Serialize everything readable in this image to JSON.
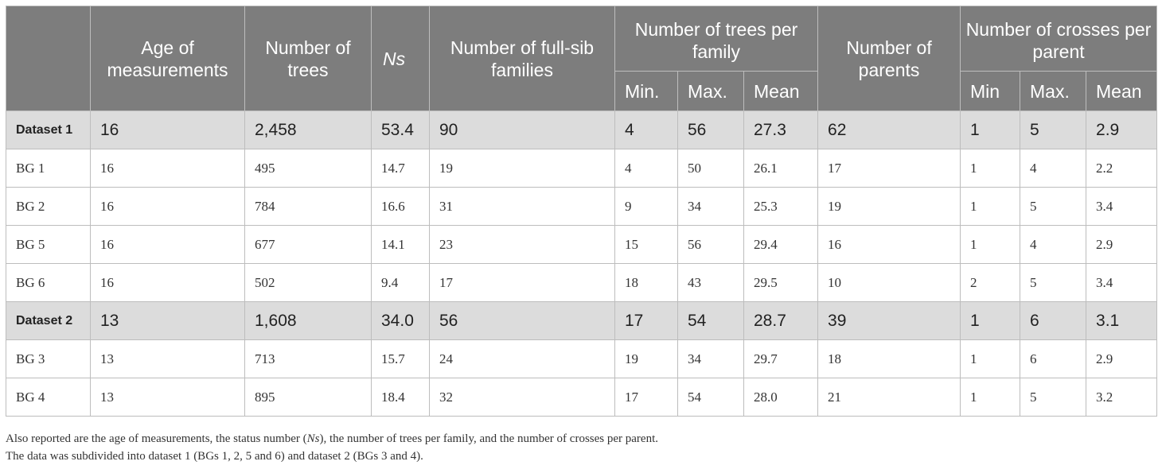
{
  "headers": {
    "age": "Age of measurements",
    "trees": "Number of trees",
    "ns": "Ns",
    "families": "Number of full-sib families",
    "trees_per_family": "Number of trees per family",
    "tpf_min": "Min.",
    "tpf_max": "Max.",
    "tpf_mean": "Mean",
    "parents": "Number of parents",
    "crosses_per_parent": "Number of crosses per parent",
    "cpp_min": "Min",
    "cpp_max": "Max.",
    "cpp_mean": "Mean"
  },
  "rows": [
    {
      "label": "Dataset 1",
      "cells": [
        "16",
        "2,458",
        "53.4",
        "90",
        "4",
        "56",
        "27.3",
        "62",
        "1",
        "5",
        "2.9"
      ]
    },
    {
      "label": "BG 1",
      "cells": [
        "16",
        "495",
        "14.7",
        "19",
        "4",
        "50",
        "26.1",
        "17",
        "1",
        "4",
        "2.2"
      ]
    },
    {
      "label": "BG 2",
      "cells": [
        "16",
        "784",
        "16.6",
        "31",
        "9",
        "34",
        "25.3",
        "19",
        "1",
        "5",
        "3.4"
      ]
    },
    {
      "label": "BG 5",
      "cells": [
        "16",
        "677",
        "14.1",
        "23",
        "15",
        "56",
        "29.4",
        "16",
        "1",
        "4",
        "2.9"
      ]
    },
    {
      "label": "BG 6",
      "cells": [
        "16",
        "502",
        "9.4",
        "17",
        "18",
        "43",
        "29.5",
        "10",
        "2",
        "5",
        "3.4"
      ]
    },
    {
      "label": "Dataset 2",
      "cells": [
        "13",
        "1,608",
        "34.0",
        "56",
        "17",
        "54",
        "28.7",
        "39",
        "1",
        "6",
        "3.1"
      ]
    },
    {
      "label": "BG 3",
      "cells": [
        "13",
        "713",
        "15.7",
        "24",
        "19",
        "34",
        "29.7",
        "18",
        "1",
        "6",
        "2.9"
      ]
    },
    {
      "label": "BG 4",
      "cells": [
        "13",
        "895",
        "18.4",
        "32",
        "17",
        "54",
        "28.0",
        "21",
        "1",
        "5",
        "3.2"
      ]
    }
  ],
  "notes": {
    "line1_a": "Also reported are the age of measurements, the status number (",
    "line1_ns": "Ns",
    "line1_b": "), the number of trees per family, and the number of crosses per parent.",
    "line2": "The data was subdivided into dataset 1 (BGs 1, 2, 5 and 6) and dataset 2 (BGs 3 and 4)."
  }
}
